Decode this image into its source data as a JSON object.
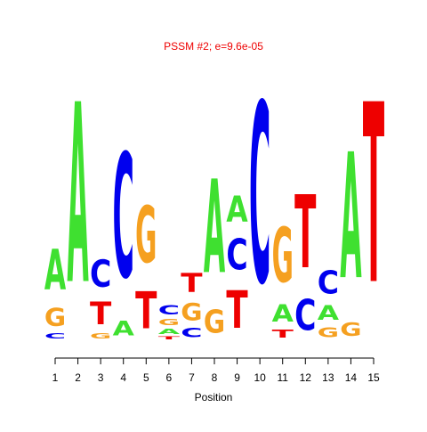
{
  "chart_data": {
    "type": "logo",
    "title": "PSSM #2; e=9.6e-05",
    "x_label": "Position",
    "xlim": [
      1,
      15
    ],
    "xticks": [
      1,
      2,
      3,
      4,
      5,
      6,
      7,
      8,
      9,
      10,
      11,
      12,
      13,
      14,
      15
    ],
    "ylim": [
      0,
      2
    ],
    "colors": {
      "A": "#3fe030",
      "C": "#0000ee",
      "G": "#f5a020",
      "T": "#ee0000"
    },
    "stacks": [
      {
        "letters": [
          "C",
          "G",
          "A"
        ],
        "values": [
          0.06,
          0.2,
          0.45
        ]
      },
      {
        "letters": [
          "A"
        ],
        "values": [
          2.0
        ]
      },
      {
        "letters": [
          "G",
          "T",
          "C"
        ],
        "values": [
          0.06,
          0.25,
          0.3
        ]
      },
      {
        "letters": [
          "A",
          "C"
        ],
        "values": [
          0.16,
          1.38
        ]
      },
      {
        "letters": [
          "T",
          "G"
        ],
        "values": [
          0.41,
          0.63
        ]
      },
      {
        "letters": [
          "T",
          "A",
          "G",
          "C"
        ],
        "values": [
          0.03,
          0.06,
          0.07,
          0.1
        ]
      },
      {
        "letters": [
          "C",
          "G",
          "T"
        ],
        "values": [
          0.1,
          0.19,
          0.21
        ]
      },
      {
        "letters": [
          "G",
          "A"
        ],
        "values": [
          0.26,
          1.04
        ]
      },
      {
        "letters": [
          "T",
          "C",
          "A"
        ],
        "values": [
          0.42,
          0.34,
          0.29
        ]
      },
      {
        "letters": [
          "C"
        ],
        "values": [
          2.0
        ]
      },
      {
        "letters": [
          "T",
          "A",
          "G"
        ],
        "values": [
          0.09,
          0.19,
          0.61
        ]
      },
      {
        "letters": [
          "C",
          "T"
        ],
        "values": [
          0.34,
          0.81
        ]
      },
      {
        "letters": [
          "G",
          "A",
          "C"
        ],
        "values": [
          0.11,
          0.16,
          0.26
        ]
      },
      {
        "letters": [
          "G",
          "A"
        ],
        "values": [
          0.15,
          1.4
        ]
      },
      {
        "letters": [
          "T"
        ],
        "values": [
          2.0
        ]
      }
    ]
  }
}
